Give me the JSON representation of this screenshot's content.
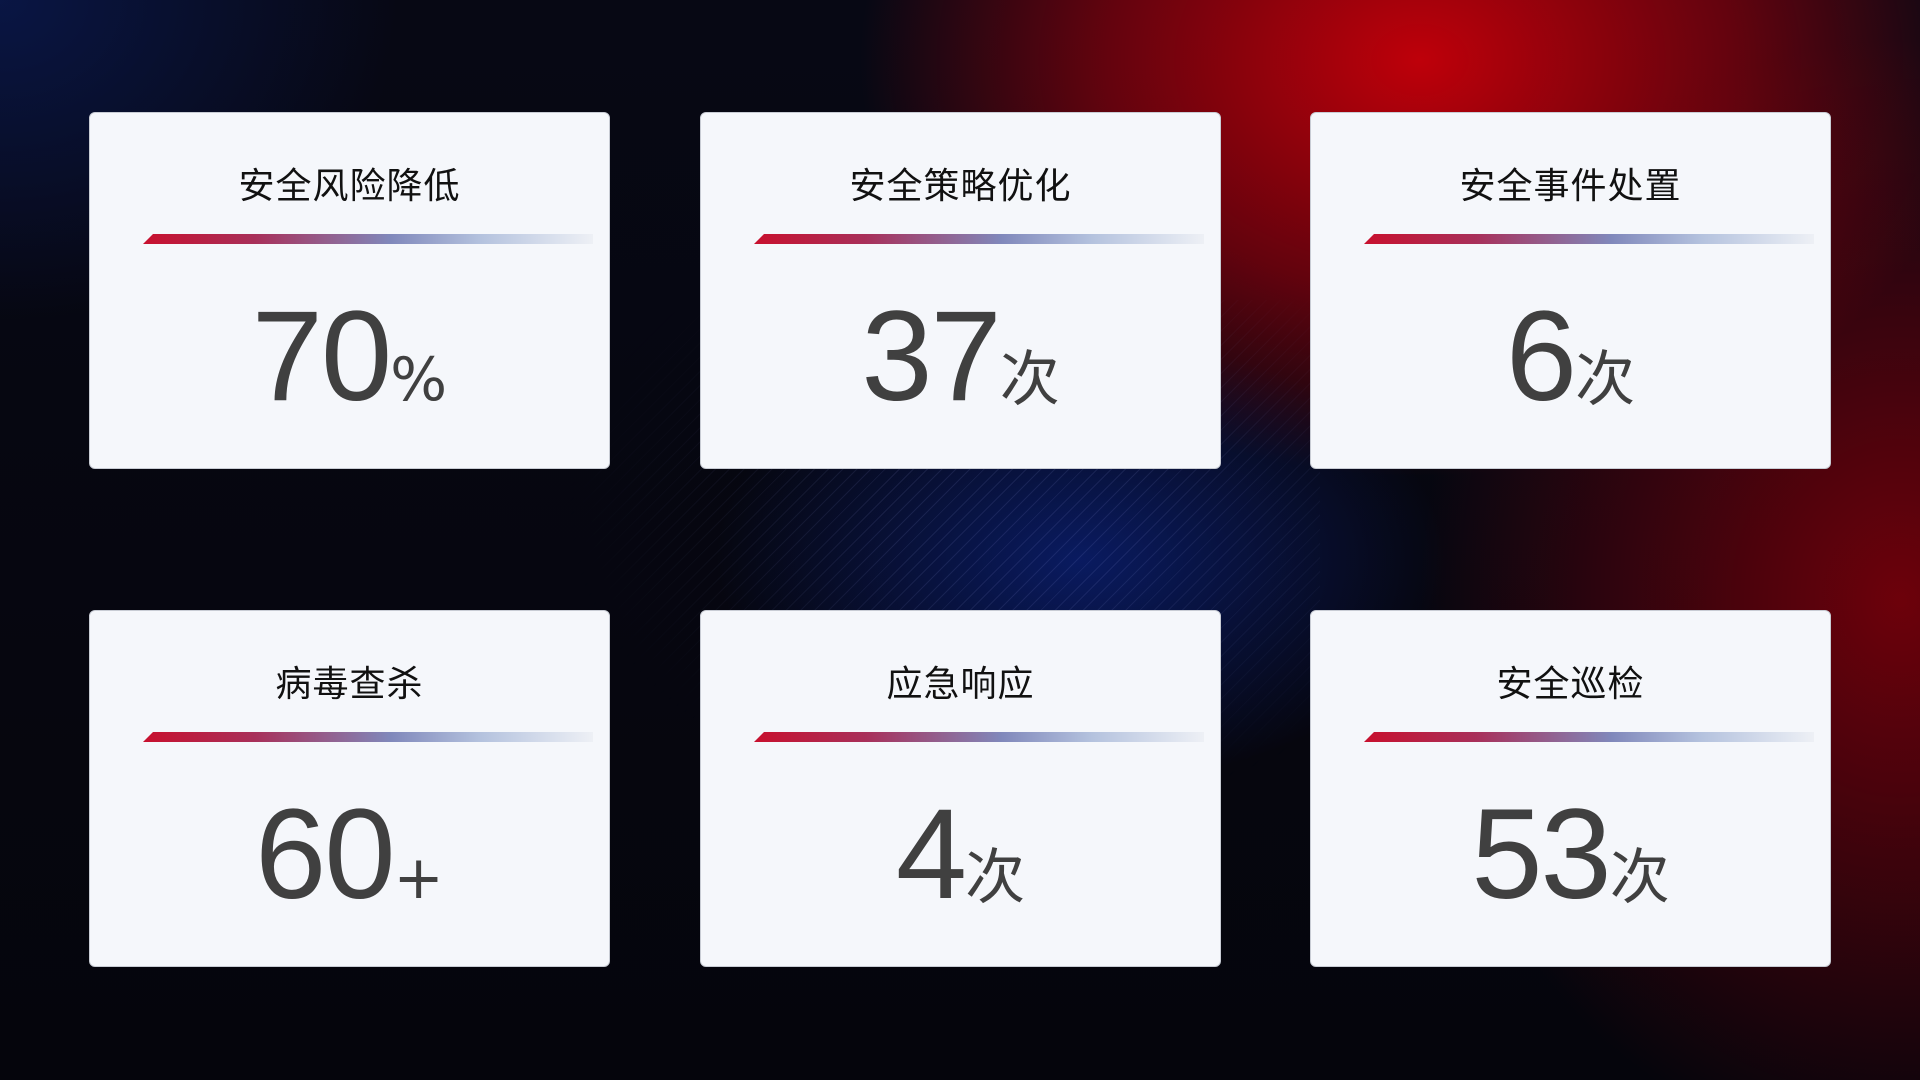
{
  "cards": [
    {
      "title": "安全风险降低",
      "value": "70",
      "unit": "%"
    },
    {
      "title": "安全策略优化",
      "value": "37",
      "unit": "次"
    },
    {
      "title": "安全事件处置",
      "value": "6",
      "unit": "次"
    },
    {
      "title": "病毒查杀",
      "value": "60",
      "unit": "+"
    },
    {
      "title": "应急响应",
      "value": "4",
      "unit": "次"
    },
    {
      "title": "安全巡检",
      "value": "53",
      "unit": "次"
    }
  ],
  "colors": {
    "accent_red": "#c8102e",
    "accent_blue": "#8088bb",
    "card_bg": "#f5f7fb",
    "value_text": "#404040"
  }
}
